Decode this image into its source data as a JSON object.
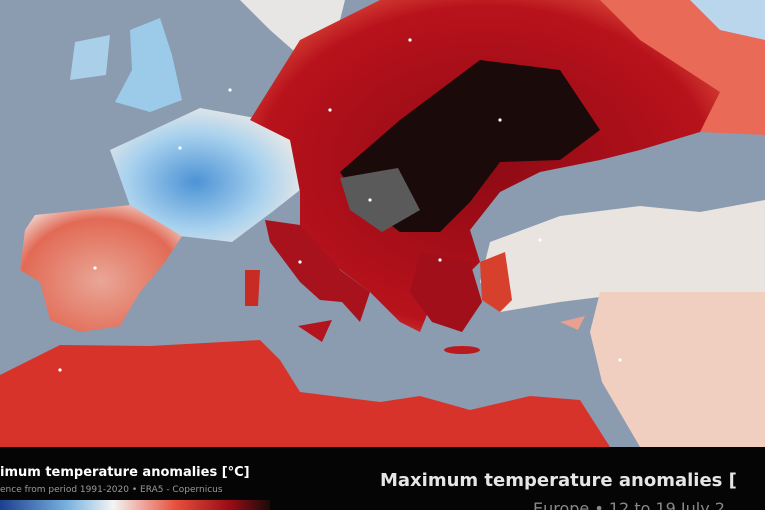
{
  "legend": {
    "title": "imum temperature anomalies [°C]",
    "subtitle": "ence from period 1991-2020 • ERA5 - Copernicus"
  },
  "header": {
    "title": "Maximum temperature anomalies [",
    "subtitle": "Europe • 12 to 19 July 2"
  }
}
